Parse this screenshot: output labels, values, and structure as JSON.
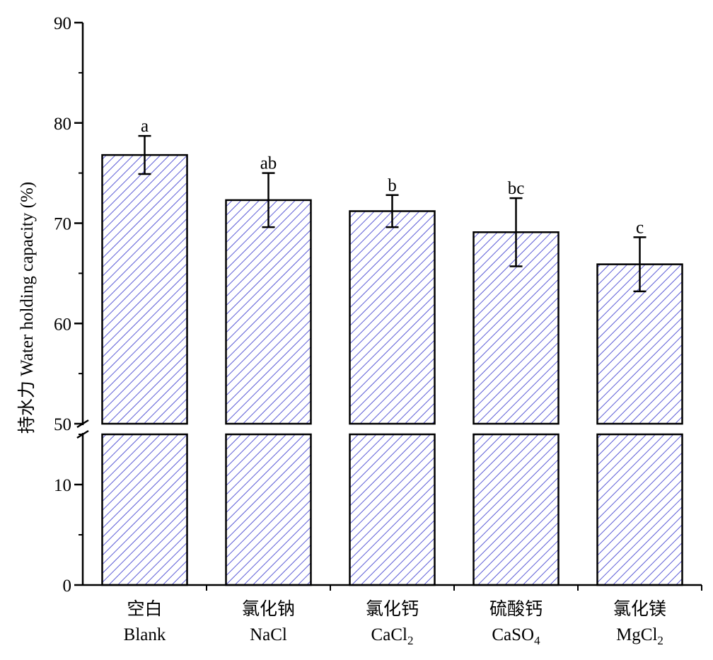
{
  "chart_data": {
    "type": "bar",
    "title": "",
    "xlabel": "",
    "ylabel": "持水力 Water holding capacity (%)",
    "axis_break": {
      "lower_range": [
        0,
        15
      ],
      "upper_range": [
        50,
        90
      ]
    },
    "lower_yticks": [
      "0",
      "10"
    ],
    "upper_yticks": [
      "50",
      "60",
      "70",
      "80",
      "90"
    ],
    "categories": [
      {
        "zh": "空白",
        "en": "Blank",
        "sub": ""
      },
      {
        "zh": "氯化钠",
        "en": "NaCl",
        "sub": ""
      },
      {
        "zh": "氯化钙",
        "en": "CaCl",
        "sub": "2"
      },
      {
        "zh": "硫酸钙",
        "en": "CaSO",
        "sub": "4"
      },
      {
        "zh": "氯化镁",
        "en": "MgCl",
        "sub": "2"
      }
    ],
    "values": [
      76.8,
      72.3,
      71.2,
      69.1,
      65.9
    ],
    "error": [
      1.9,
      2.7,
      1.6,
      3.4,
      2.7
    ],
    "significance": [
      "a",
      "ab",
      "b",
      "bc",
      "c"
    ],
    "bar_fill": "hatched",
    "hatch_color": "#3333cc",
    "grid": false,
    "legend": "none"
  }
}
